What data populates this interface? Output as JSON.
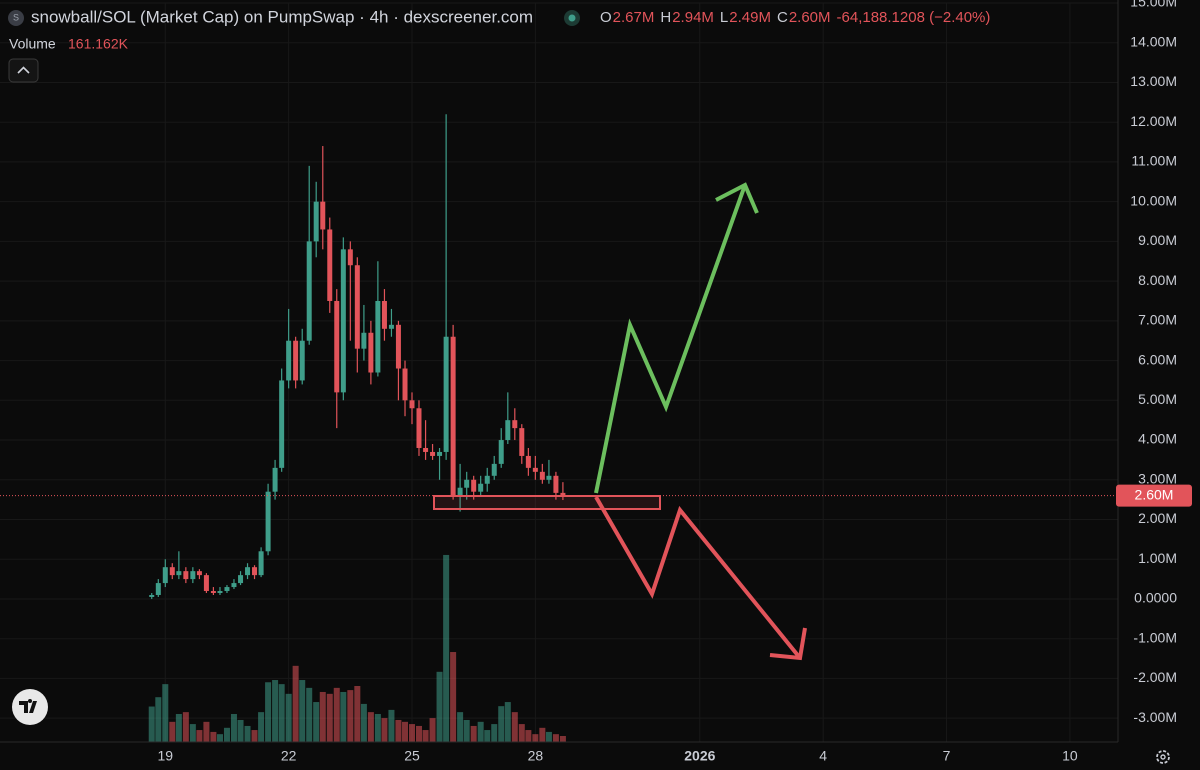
{
  "chart_data": {
    "type": "candlestick",
    "title": "snowball/SOL (Market Cap) on PumpSwap · 4h · dexscreener.com",
    "ohlc": [
      {
        "key": "O",
        "value": "2.67M"
      },
      {
        "key": "H",
        "value": "2.94M"
      },
      {
        "key": "L",
        "value": "2.49M"
      },
      {
        "key": "C",
        "value": "2.60M"
      }
    ],
    "change": "-64,188.1208 (−2.40%)",
    "volume_title": "Volume",
    "volume_last": "161.162K",
    "close_label": "2.60M",
    "up_color": "#3f9e8a",
    "down_color": "#e2545a",
    "grid": true,
    "x": [
      18.67,
      18.83,
      19,
      19.17,
      19.33,
      19.5,
      19.67,
      19.83,
      20,
      20.17,
      20.33,
      20.5,
      20.67,
      20.83,
      21,
      21.17,
      21.33,
      21.5,
      21.67,
      21.83,
      22,
      22.17,
      22.33,
      22.5,
      22.67,
      22.83,
      23,
      23.17,
      23.33,
      23.5,
      23.67,
      23.83,
      24,
      24.17,
      24.33,
      24.5,
      24.67,
      24.83,
      25,
      25.17,
      25.33,
      25.5,
      25.67,
      25.83,
      26,
      26.17,
      26.33,
      26.5,
      26.67,
      26.83,
      27,
      27.17,
      27.33,
      27.5,
      27.67,
      27.83,
      28,
      28.17,
      28.33,
      28.5,
      28.67
    ],
    "open": [
      0.05,
      0.1,
      0.4,
      0.8,
      0.6,
      0.7,
      0.5,
      0.7,
      0.6,
      0.2,
      0.15,
      0.2,
      0.3,
      0.4,
      0.6,
      0.8,
      0.6,
      1.2,
      2.7,
      3.3,
      5.5,
      6.5,
      5.5,
      6.5,
      9.0,
      10.0,
      9.3,
      7.5,
      5.2,
      8.8,
      8.4,
      6.3,
      6.7,
      5.7,
      7.5,
      6.8,
      6.9,
      5.8,
      5.0,
      4.8,
      3.8,
      3.7,
      3.6,
      3.7,
      6.6,
      2.6,
      2.8,
      3.0,
      2.7,
      2.9,
      3.1,
      3.4,
      4.0,
      4.5,
      4.3,
      3.6,
      3.3,
      3.2,
      3.0,
      3.1,
      2.67
    ],
    "high": [
      0.15,
      0.5,
      1.0,
      0.9,
      1.2,
      0.8,
      0.8,
      0.75,
      0.65,
      0.3,
      0.3,
      0.35,
      0.5,
      0.7,
      0.9,
      0.85,
      1.3,
      2.9,
      3.5,
      5.8,
      7.3,
      6.6,
      6.8,
      10.9,
      10.5,
      11.4,
      9.6,
      7.8,
      9.1,
      9.0,
      8.6,
      7.4,
      7.0,
      8.5,
      7.8,
      7.3,
      7.0,
      6.0,
      5.2,
      5.0,
      4.5,
      3.9,
      3.8,
      12.2,
      6.9,
      3.4,
      3.2,
      3.1,
      3.1,
      3.3,
      3.6,
      4.3,
      5.2,
      4.8,
      4.4,
      3.8,
      3.6,
      3.4,
      3.5,
      3.2,
      2.94
    ],
    "low": [
      0,
      0.05,
      0.3,
      0.5,
      0.5,
      0.4,
      0.4,
      0.5,
      0.15,
      0.1,
      0.1,
      0.15,
      0.25,
      0.35,
      0.5,
      0.5,
      0.55,
      1.1,
      2.5,
      3.2,
      5.3,
      5.3,
      5.4,
      6.4,
      8.6,
      8.8,
      7.2,
      4.3,
      5.0,
      6.5,
      5.7,
      6.0,
      5.4,
      5.6,
      6.5,
      6.6,
      5.0,
      4.6,
      4.4,
      3.6,
      3.5,
      3.5,
      3.0,
      3.5,
      2.5,
      2.2,
      2.5,
      2.5,
      2.6,
      2.7,
      3.0,
      3.3,
      3.9,
      4.0,
      3.4,
      3.1,
      3.0,
      2.9,
      2.9,
      2.5,
      2.49
    ],
    "close": [
      0.1,
      0.4,
      0.8,
      0.6,
      0.7,
      0.5,
      0.7,
      0.6,
      0.2,
      0.15,
      0.2,
      0.3,
      0.4,
      0.6,
      0.8,
      0.6,
      1.2,
      2.7,
      3.3,
      5.5,
      6.5,
      5.5,
      6.5,
      9.0,
      10.0,
      9.3,
      7.5,
      5.2,
      8.8,
      8.4,
      6.3,
      6.7,
      5.7,
      7.5,
      6.8,
      6.9,
      5.8,
      5.0,
      4.8,
      3.8,
      3.7,
      3.6,
      3.7,
      6.6,
      2.6,
      2.8,
      3.0,
      2.7,
      2.9,
      3.1,
      3.4,
      4.0,
      4.5,
      4.3,
      3.6,
      3.3,
      3.2,
      3.0,
      3.1,
      2.67,
      2.6
    ],
    "volume": [
      950,
      1200,
      1550,
      540,
      750,
      800,
      480,
      320,
      540,
      270,
      210,
      380,
      750,
      590,
      430,
      320,
      800,
      1600,
      1660,
      1550,
      1290,
      2040,
      1660,
      1450,
      1070,
      1340,
      1290,
      1450,
      1340,
      1390,
      1500,
      1020,
      800,
      750,
      640,
      860,
      590,
      540,
      480,
      430,
      320,
      640,
      1880,
      5010,
      2410,
      800,
      590,
      430,
      540,
      320,
      480,
      960,
      1070,
      800,
      480,
      320,
      210,
      380,
      270,
      210,
      161.162
    ],
    "vlim": [
      0,
      6000
    ],
    "ylim": [
      -3.6,
      15
    ],
    "yticks": [
      {
        "value": 15,
        "label": "15.00M"
      },
      {
        "value": 14,
        "label": "14.00M"
      },
      {
        "value": 13,
        "label": "13.00M"
      },
      {
        "value": 12,
        "label": "12.00M"
      },
      {
        "value": 11,
        "label": "11.00M"
      },
      {
        "value": 10,
        "label": "10.00M"
      },
      {
        "value": 9,
        "label": "9.00M"
      },
      {
        "value": 8,
        "label": "8.00M"
      },
      {
        "value": 7,
        "label": "7.00M"
      },
      {
        "value": 6,
        "label": "6.00M"
      },
      {
        "value": 5,
        "label": "5.00M"
      },
      {
        "value": 4,
        "label": "4.00M"
      },
      {
        "value": 3,
        "label": "3.00M"
      },
      {
        "value": 2,
        "label": "2.00M"
      },
      {
        "value": 1,
        "label": "1.00M"
      },
      {
        "value": 0,
        "label": "0.0000"
      },
      {
        "value": -1,
        "label": "-1.00M"
      },
      {
        "value": -2,
        "label": "-2.00M"
      },
      {
        "value": -3,
        "label": "-3.00M"
      }
    ],
    "xlim": [
      14.98,
      42.17
    ],
    "xticks": [
      19,
      22,
      25,
      28,
      {
        "value": 32,
        "label": "2026"
      },
      {
        "value": 35,
        "label": "4"
      },
      {
        "value": 38,
        "label": "7"
      },
      {
        "value": 41,
        "label": "10"
      }
    ]
  }
}
